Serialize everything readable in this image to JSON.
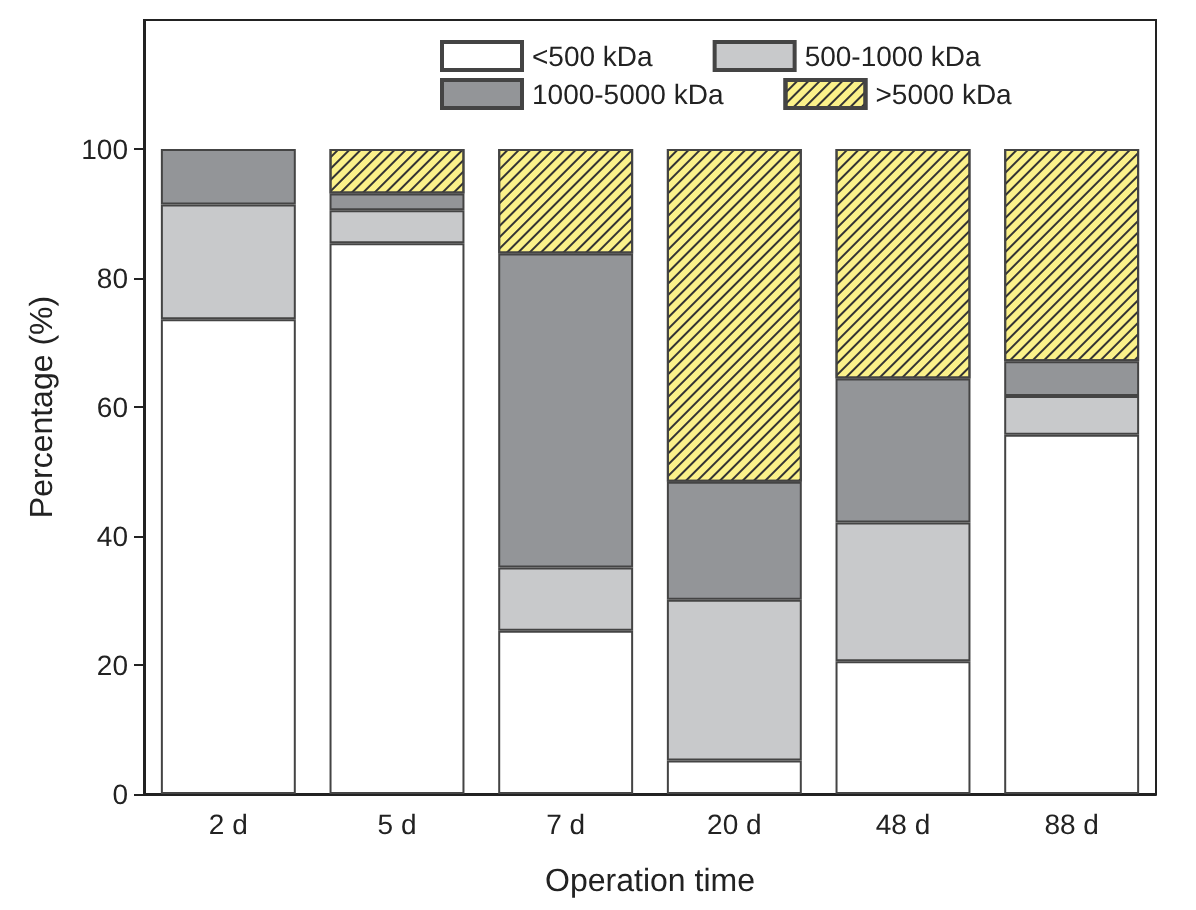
{
  "chart_data": {
    "type": "bar",
    "stacked": true,
    "xlabel": "Operation time",
    "ylabel": "Percentage (%)",
    "categories": [
      "2 d",
      "5 d",
      "7 d",
      "20 d",
      "48 d",
      "88 d"
    ],
    "series": [
      {
        "name": "<500 kDa",
        "color": "#ffffff",
        "values": [
          73.6,
          85.4,
          25.3,
          5.2,
          20.6,
          55.7
        ]
      },
      {
        "name": "500-1000 kDa",
        "color": "#c8c9cb",
        "values": [
          17.8,
          5.1,
          9.8,
          24.9,
          21.5,
          6.0
        ]
      },
      {
        "name": "1000-5000 kDa",
        "color": "#939598",
        "values": [
          8.6,
          2.6,
          48.7,
          18.3,
          22.3,
          5.4
        ]
      },
      {
        "name": ">5000 kDa",
        "color": "#fbf18a",
        "values": [
          0,
          6.9,
          16.2,
          51.6,
          35.6,
          32.9
        ]
      }
    ],
    "ylim": [
      0,
      120
    ],
    "yticks": [
      0,
      20,
      40,
      60,
      80,
      100
    ],
    "grid": false,
    "legend": "top"
  }
}
